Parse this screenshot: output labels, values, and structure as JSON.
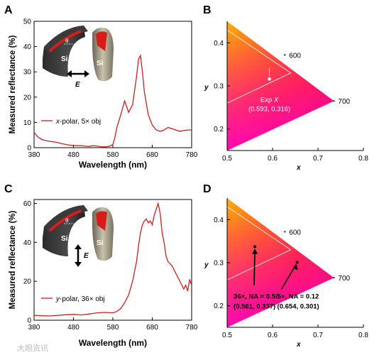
{
  "watermark": "大眼资讯",
  "colors": {
    "curve": "#cc1f1f",
    "axis": "#000000",
    "spectral_outline": "#f2f2f2"
  },
  "chart_data": [
    {
      "panel": "A",
      "type": "line",
      "xlabel": "Wavelength (nm)",
      "ylabel": "Measured reflectance (%)",
      "xlim": [
        380,
        780
      ],
      "ylim": [
        0,
        50
      ],
      "xticks": [
        "380",
        "480",
        "580",
        "680",
        "780"
      ],
      "yticks": [
        "0",
        "10",
        "20",
        "30",
        "40",
        "50"
      ],
      "legend": {
        "prefix": "x",
        "suffix": "-polar, 5× obj",
        "position": "middle-left"
      },
      "inset": {
        "material": [
          "Si",
          "Si"
        ],
        "angle_symbol": "θ",
        "field_label": "E",
        "field_direction": "horizontal"
      },
      "series": [
        {
          "x": [
            380,
            390,
            400,
            410,
            420,
            430,
            440,
            450,
            460,
            470,
            480,
            490,
            500,
            510,
            520,
            530,
            540,
            550,
            560,
            570,
            580,
            585,
            590,
            600,
            610,
            620,
            630,
            640,
            645,
            650,
            655,
            660,
            670,
            680,
            690,
            700,
            710,
            720,
            730,
            740,
            750,
            760,
            770,
            780
          ],
          "y": [
            6,
            4.2,
            3.2,
            2.8,
            2.5,
            2.3,
            2.0,
            1.6,
            1.3,
            1.0,
            0.9,
            0.8,
            0.8,
            0.6,
            0.5,
            0.8,
            0.6,
            0.4,
            0.3,
            0.5,
            1.2,
            4,
            8,
            13,
            18.5,
            14,
            17,
            28,
            35,
            36.5,
            30,
            22,
            13,
            9,
            7,
            6.5,
            7,
            8,
            7.5,
            7,
            6.5,
            6.8,
            7,
            7
          ]
        }
      ]
    },
    {
      "panel": "B",
      "type": "scatter",
      "xlabel": "x",
      "ylabel": "y",
      "xlim": [
        0.5,
        0.8
      ],
      "ylim": [
        0.15,
        0.45
      ],
      "xticks": [
        "0.5",
        "0.6",
        "0.7",
        "0.8"
      ],
      "yticks": [
        "0.2",
        "0.3",
        "0.4"
      ],
      "wavelength_labels": [
        {
          "text": "600",
          "x": 0.627,
          "y": 0.372
        },
        {
          "text": "700",
          "x": 0.735,
          "y": 0.265
        }
      ],
      "points": [
        {
          "name": "Exp",
          "symbol": "X",
          "coords": "(0.593, 0.316)",
          "x": 0.593,
          "y": 0.316
        }
      ]
    },
    {
      "panel": "C",
      "type": "line",
      "xlabel": "Wavelength (nm)",
      "ylabel": "Measured reflectance (%)",
      "xlim": [
        380,
        780
      ],
      "ylim": [
        0,
        62
      ],
      "xticks": [
        "380",
        "480",
        "580",
        "680",
        "780"
      ],
      "yticks": [
        "0",
        "20",
        "40",
        "60"
      ],
      "legend": {
        "prefix": "y",
        "suffix": "-polar, 36× obj",
        "position": "bottom-left"
      },
      "inset": {
        "material": [
          "Si",
          "Si"
        ],
        "angle_symbol": "θ",
        "field_label": "E",
        "field_direction": "vertical"
      },
      "series": [
        {
          "x": [
            380,
            400,
            420,
            440,
            460,
            480,
            500,
            520,
            540,
            560,
            580,
            590,
            600,
            610,
            620,
            630,
            640,
            645,
            650,
            655,
            660,
            665,
            670,
            675,
            680,
            685,
            690,
            695,
            700,
            705,
            710,
            715,
            720,
            730,
            740,
            750,
            760,
            765,
            770,
            775,
            780
          ],
          "y": [
            2.5,
            2.3,
            2.2,
            2.5,
            2.8,
            3.0,
            2.7,
            3.2,
            3.8,
            4.0,
            3.8,
            4.5,
            6,
            9,
            13,
            20,
            30,
            38,
            45,
            49,
            51,
            52,
            50,
            51,
            49,
            54,
            57,
            60,
            55,
            45,
            40,
            33,
            30,
            28,
            24,
            20,
            16,
            18,
            15,
            21,
            18
          ]
        }
      ]
    },
    {
      "panel": "D",
      "type": "scatter",
      "xlabel": "x",
      "ylabel": "y",
      "xlim": [
        0.5,
        0.8
      ],
      "ylim": [
        0.15,
        0.45
      ],
      "xticks": [
        "0.5",
        "0.6",
        "0.7",
        "0.8"
      ],
      "yticks": [
        "0.2",
        "0.3",
        "0.4"
      ],
      "wavelength_labels": [
        {
          "text": "600",
          "x": 0.627,
          "y": 0.372
        },
        {
          "text": "700",
          "x": 0.735,
          "y": 0.265
        }
      ],
      "points": [
        {
          "line1": "36×, NA = 0.50",
          "coords": "(0.561, 0.337)",
          "x": 0.561,
          "y": 0.337
        },
        {
          "line1": "5×, NA = 0.12",
          "coords": "(0.654, 0.301)",
          "x": 0.654,
          "y": 0.301
        }
      ]
    }
  ]
}
